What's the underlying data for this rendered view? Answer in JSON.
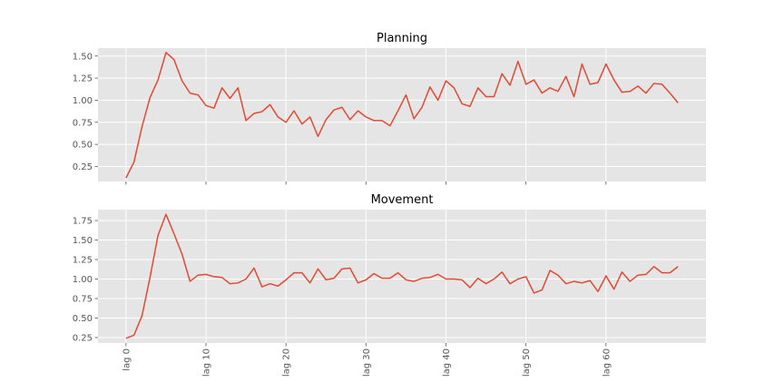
{
  "chart_data": [
    {
      "type": "line",
      "title": "Planning",
      "xlabel": "",
      "ylabel": "",
      "grid": true,
      "line_color": "#e24a33",
      "background_color": "#e5e5e5",
      "xlim": [
        -3.5,
        72.5
      ],
      "ylim": [
        0.08,
        1.59
      ],
      "yticks": [
        "0.25",
        "0.50",
        "0.75",
        "1.00",
        "1.25",
        "1.50"
      ],
      "xticks": [
        0,
        10,
        20,
        30,
        40,
        50,
        60
      ],
      "xtick_labels": [],
      "x_start": 0,
      "values": [
        0.12,
        0.3,
        0.7,
        1.03,
        1.23,
        1.54,
        1.46,
        1.22,
        1.08,
        1.06,
        0.94,
        0.91,
        1.14,
        1.02,
        1.14,
        0.77,
        0.85,
        0.87,
        0.95,
        0.81,
        0.75,
        0.88,
        0.73,
        0.81,
        0.59,
        0.78,
        0.89,
        0.92,
        0.78,
        0.88,
        0.81,
        0.77,
        0.77,
        0.71,
        0.88,
        1.06,
        0.79,
        0.92,
        1.15,
        1.0,
        1.22,
        1.14,
        0.96,
        0.93,
        1.14,
        1.04,
        1.04,
        1.3,
        1.17,
        1.44,
        1.18,
        1.23,
        1.08,
        1.14,
        1.1,
        1.27,
        1.04,
        1.41,
        1.18,
        1.2,
        1.41,
        1.23,
        1.09,
        1.1,
        1.16,
        1.08,
        1.19,
        1.18,
        1.08,
        0.97
      ]
    },
    {
      "type": "line",
      "title": "Movement",
      "xlabel": "",
      "ylabel": "",
      "grid": true,
      "line_color": "#e24a33",
      "background_color": "#e5e5e5",
      "xlim": [
        -3.5,
        72.5
      ],
      "ylim": [
        0.18,
        1.89
      ],
      "yticks": [
        "0.25",
        "0.50",
        "0.75",
        "1.00",
        "1.25",
        "1.50",
        "1.75"
      ],
      "xticks": [
        0,
        10,
        20,
        30,
        40,
        50,
        60
      ],
      "xtick_labels": [
        "lag 0",
        "lag 10",
        "lag 20",
        "lag 30",
        "lag 40",
        "lag 50",
        "lag 60"
      ],
      "x_start": 0,
      "values": [
        0.24,
        0.28,
        0.53,
        1.02,
        1.56,
        1.83,
        1.58,
        1.32,
        0.97,
        1.05,
        1.06,
        1.03,
        1.02,
        0.94,
        0.95,
        1.0,
        1.14,
        0.9,
        0.94,
        0.91,
        0.99,
        1.08,
        1.08,
        0.95,
        1.13,
        0.99,
        1.01,
        1.13,
        1.14,
        0.95,
        0.99,
        1.07,
        1.01,
        1.01,
        1.08,
        0.99,
        0.97,
        1.01,
        1.02,
        1.06,
        1.0,
        1.0,
        0.99,
        0.89,
        1.01,
        0.94,
        1.0,
        1.09,
        0.94,
        1.0,
        1.03,
        0.82,
        0.86,
        1.11,
        1.05,
        0.94,
        0.97,
        0.95,
        0.98,
        0.84,
        1.04,
        0.87,
        1.09,
        0.97,
        1.05,
        1.06,
        1.16,
        1.08,
        1.08,
        1.16
      ]
    }
  ]
}
